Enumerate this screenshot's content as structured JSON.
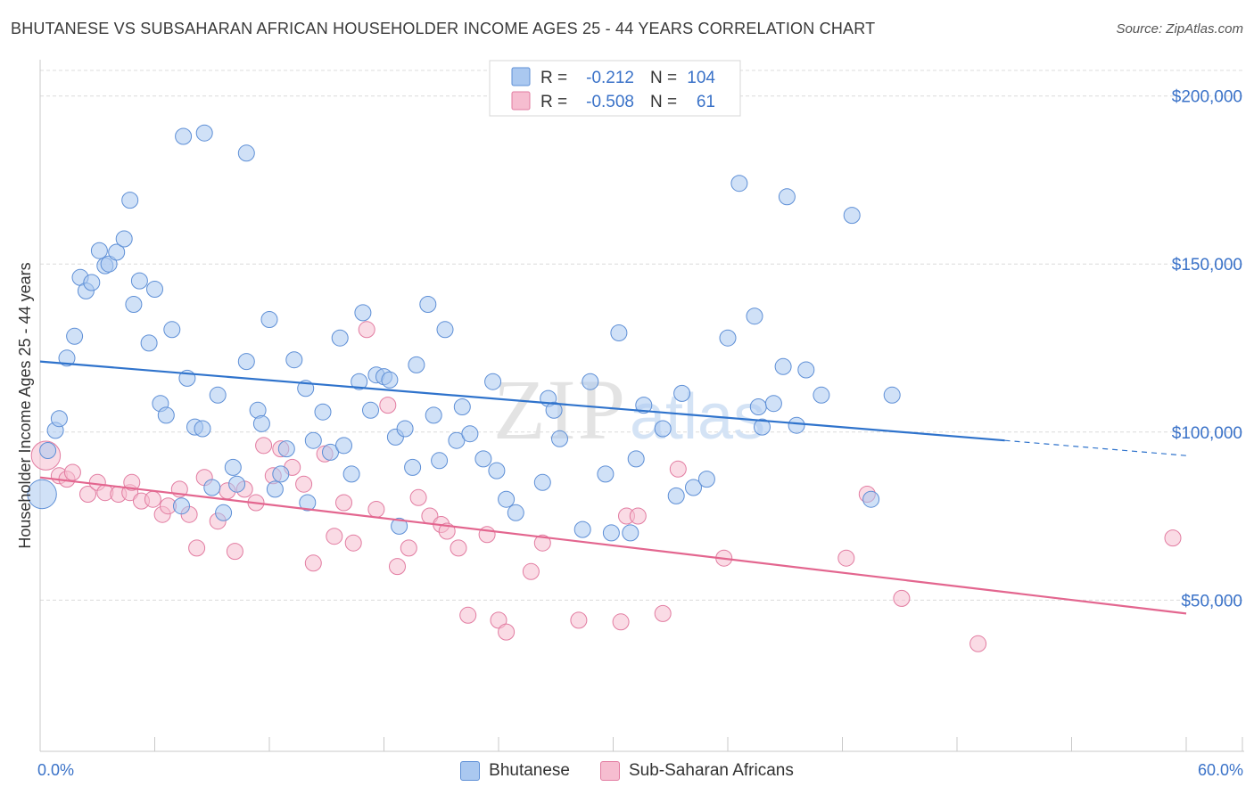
{
  "title": "BHUTANESE VS SUBSAHARAN AFRICAN HOUSEHOLDER INCOME AGES 25 - 44 YEARS CORRELATION CHART",
  "source": "Source: ZipAtlas.com",
  "watermark": "ZIPatlas",
  "colors": {
    "blue_fill": "#aac8f0",
    "blue_stroke": "#5e8fd6",
    "blue_line": "#2f73cc",
    "pink_fill": "#f6bdd0",
    "pink_stroke": "#e27ca1",
    "pink_line": "#e3668f",
    "axis_text": "#3a72c8",
    "grid": "#dcdcdc"
  },
  "legend": [
    {
      "key": "blue",
      "r_label": "R =",
      "r_value": "-0.212",
      "n_label": "N =",
      "n_value": "104"
    },
    {
      "key": "pink",
      "r_label": "R =",
      "r_value": "-0.508",
      "n_label": "N =",
      "n_value": "61"
    }
  ],
  "chart_data": {
    "type": "scatter",
    "title": "BHUTANESE VS SUBSAHARAN AFRICAN HOUSEHOLDER INCOME AGES 25 - 44 YEARS CORRELATION CHART",
    "xlabel": "",
    "ylabel": "Householder Income Ages 25 - 44 years",
    "xlim": [
      0,
      60
    ],
    "ylim": [
      5000,
      210000
    ],
    "x_tick_labels": [
      "0.0%",
      "60.0%"
    ],
    "y_ticks": [
      50000,
      100000,
      150000,
      200000
    ],
    "y_tick_labels": [
      "$50,000",
      "$100,000",
      "$150,000",
      "$200,000"
    ],
    "grid": true,
    "legend_position": "top-center",
    "series": [
      {
        "name": "Bhutanese",
        "color": "blue",
        "trend": {
          "x0": 0,
          "y0": 121000,
          "x1": 50.5,
          "y1": 97500,
          "dashed_to_x": 60,
          "dashed_to_y": 93000
        },
        "points": [
          [
            0.1,
            81500,
            1.8
          ],
          [
            0.4,
            94500,
            1.0
          ],
          [
            0.8,
            100500,
            1.0
          ],
          [
            1.0,
            104000,
            1.0
          ],
          [
            1.4,
            122000,
            1.0
          ],
          [
            1.8,
            128500,
            1.0
          ],
          [
            2.1,
            146000,
            1.0
          ],
          [
            2.4,
            142000,
            1.0
          ],
          [
            2.7,
            144500,
            1.0
          ],
          [
            3.1,
            154000,
            1.0
          ],
          [
            3.4,
            149500,
            1.0
          ],
          [
            3.6,
            150000,
            1.0
          ],
          [
            4.0,
            153500,
            1.0
          ],
          [
            4.4,
            157500,
            1.0
          ],
          [
            4.7,
            169000,
            1.0
          ],
          [
            4.9,
            138000,
            1.0
          ],
          [
            5.2,
            145000,
            1.0
          ],
          [
            5.7,
            126500,
            1.0
          ],
          [
            6.0,
            142500,
            1.0
          ],
          [
            6.3,
            108500,
            1.0
          ],
          [
            6.6,
            105000,
            1.0
          ],
          [
            6.9,
            130500,
            1.0
          ],
          [
            7.4,
            78000,
            1.0
          ],
          [
            7.7,
            116000,
            1.0
          ],
          [
            7.5,
            188000,
            1.0
          ],
          [
            8.1,
            101500,
            1.0
          ],
          [
            8.5,
            101000,
            1.0
          ],
          [
            8.6,
            189000,
            1.0
          ],
          [
            9.0,
            83500,
            1.0
          ],
          [
            9.3,
            111000,
            1.0
          ],
          [
            9.6,
            76000,
            1.0
          ],
          [
            10.1,
            89500,
            1.0
          ],
          [
            10.3,
            84500,
            1.0
          ],
          [
            10.8,
            121000,
            1.0
          ],
          [
            10.8,
            183000,
            1.0
          ],
          [
            11.4,
            106500,
            1.0
          ],
          [
            11.6,
            102500,
            1.0
          ],
          [
            12.0,
            133500,
            1.0
          ],
          [
            12.3,
            83000,
            1.0
          ],
          [
            12.6,
            87500,
            1.0
          ],
          [
            12.9,
            95000,
            1.0
          ],
          [
            13.3,
            121500,
            1.0
          ],
          [
            13.9,
            113000,
            1.0
          ],
          [
            14.0,
            79000,
            1.0
          ],
          [
            14.3,
            97500,
            1.0
          ],
          [
            14.8,
            106000,
            1.0
          ],
          [
            15.2,
            94000,
            1.0
          ],
          [
            15.7,
            128000,
            1.0
          ],
          [
            15.9,
            96000,
            1.0
          ],
          [
            16.3,
            87500,
            1.0
          ],
          [
            16.7,
            115000,
            1.0
          ],
          [
            16.9,
            135500,
            1.0
          ],
          [
            17.3,
            106500,
            1.0
          ],
          [
            17.6,
            117000,
            1.0
          ],
          [
            18.0,
            116500,
            1.0
          ],
          [
            18.3,
            115500,
            1.0
          ],
          [
            18.6,
            98500,
            1.0
          ],
          [
            18.8,
            72000,
            1.0
          ],
          [
            19.1,
            101000,
            1.0
          ],
          [
            19.5,
            89500,
            1.0
          ],
          [
            19.7,
            120000,
            1.0
          ],
          [
            20.3,
            138000,
            1.0
          ],
          [
            20.6,
            105000,
            1.0
          ],
          [
            20.9,
            91500,
            1.0
          ],
          [
            21.2,
            130500,
            1.0
          ],
          [
            21.8,
            97500,
            1.0
          ],
          [
            22.1,
            107500,
            1.0
          ],
          [
            22.5,
            99500,
            1.0
          ],
          [
            23.2,
            92000,
            1.0
          ],
          [
            23.7,
            115000,
            1.0
          ],
          [
            23.9,
            88500,
            1.0
          ],
          [
            24.4,
            80000,
            1.0
          ],
          [
            24.9,
            76000,
            1.0
          ],
          [
            26.3,
            85000,
            1.0
          ],
          [
            26.6,
            110000,
            1.0
          ],
          [
            26.9,
            106500,
            1.0
          ],
          [
            27.2,
            98000,
            1.0
          ],
          [
            28.4,
            71000,
            1.0
          ],
          [
            28.8,
            115000,
            1.0
          ],
          [
            29.6,
            87500,
            1.0
          ],
          [
            29.9,
            70000,
            1.0
          ],
          [
            30.3,
            129500,
            1.0
          ],
          [
            30.9,
            70000,
            1.0
          ],
          [
            31.2,
            92000,
            1.0
          ],
          [
            31.6,
            108000,
            1.0
          ],
          [
            32.6,
            101000,
            1.0
          ],
          [
            33.3,
            81000,
            1.0
          ],
          [
            33.6,
            111500,
            1.0
          ],
          [
            34.2,
            83500,
            1.0
          ],
          [
            34.9,
            86000,
            1.0
          ],
          [
            36.0,
            128000,
            1.0
          ],
          [
            36.6,
            174000,
            1.0
          ],
          [
            37.4,
            134500,
            1.0
          ],
          [
            37.6,
            107500,
            1.0
          ],
          [
            37.8,
            101500,
            1.0
          ],
          [
            38.4,
            108500,
            1.0
          ],
          [
            38.9,
            119500,
            1.0
          ],
          [
            39.1,
            170000,
            1.0
          ],
          [
            39.6,
            102000,
            1.0
          ],
          [
            40.1,
            118500,
            1.0
          ],
          [
            40.9,
            111000,
            1.0
          ],
          [
            42.5,
            164500,
            1.0
          ],
          [
            43.5,
            80000,
            1.0
          ],
          [
            44.6,
            111000,
            1.0
          ]
        ]
      },
      {
        "name": "Sub-Saharan Africans",
        "color": "pink",
        "trend": {
          "x0": 0,
          "y0": 86500,
          "x1": 60,
          "y1": 46000
        },
        "points": [
          [
            0.3,
            93000,
            1.8
          ],
          [
            1.0,
            87000,
            1.0
          ],
          [
            1.4,
            86000,
            1.0
          ],
          [
            1.7,
            88000,
            1.0
          ],
          [
            2.5,
            81500,
            1.0
          ],
          [
            3.0,
            85000,
            1.0
          ],
          [
            3.4,
            82000,
            1.0
          ],
          [
            4.1,
            81500,
            1.0
          ],
          [
            4.7,
            82000,
            1.0
          ],
          [
            4.8,
            85000,
            1.0
          ],
          [
            5.3,
            79500,
            1.0
          ],
          [
            5.9,
            80000,
            1.0
          ],
          [
            6.4,
            75500,
            1.0
          ],
          [
            6.7,
            78000,
            1.0
          ],
          [
            7.3,
            83000,
            1.0
          ],
          [
            7.8,
            75500,
            1.0
          ],
          [
            8.2,
            65500,
            1.0
          ],
          [
            8.6,
            86500,
            1.0
          ],
          [
            9.3,
            73500,
            1.0
          ],
          [
            9.8,
            82500,
            1.0
          ],
          [
            10.2,
            64500,
            1.0
          ],
          [
            10.7,
            83000,
            1.0
          ],
          [
            11.3,
            79000,
            1.0
          ],
          [
            11.7,
            96000,
            1.0
          ],
          [
            12.2,
            87000,
            1.0
          ],
          [
            12.6,
            95000,
            1.0
          ],
          [
            13.2,
            89500,
            1.0
          ],
          [
            13.8,
            84500,
            1.0
          ],
          [
            14.3,
            61000,
            1.0
          ],
          [
            14.9,
            93500,
            1.0
          ],
          [
            15.4,
            69000,
            1.0
          ],
          [
            15.9,
            79000,
            1.0
          ],
          [
            16.4,
            67000,
            1.0
          ],
          [
            17.1,
            130500,
            1.0
          ],
          [
            17.6,
            77000,
            1.0
          ],
          [
            18.2,
            108000,
            1.0
          ],
          [
            18.7,
            60000,
            1.0
          ],
          [
            19.3,
            65500,
            1.0
          ],
          [
            19.8,
            80500,
            1.0
          ],
          [
            20.4,
            75000,
            1.0
          ],
          [
            21.0,
            72500,
            1.0
          ],
          [
            21.3,
            70500,
            1.0
          ],
          [
            21.9,
            65500,
            1.0
          ],
          [
            22.4,
            45500,
            1.0
          ],
          [
            23.4,
            69500,
            1.0
          ],
          [
            24.0,
            44000,
            1.0
          ],
          [
            24.4,
            40500,
            1.0
          ],
          [
            25.7,
            58500,
            1.0
          ],
          [
            26.3,
            67000,
            1.0
          ],
          [
            28.2,
            44000,
            1.0
          ],
          [
            30.4,
            43500,
            1.0
          ],
          [
            30.7,
            75000,
            1.0
          ],
          [
            31.3,
            75000,
            1.0
          ],
          [
            32.6,
            46000,
            1.0
          ],
          [
            33.4,
            89000,
            1.0
          ],
          [
            35.8,
            62500,
            1.0
          ],
          [
            42.2,
            62500,
            1.0
          ],
          [
            43.3,
            81500,
            1.0
          ],
          [
            45.1,
            50500,
            1.0
          ],
          [
            49.1,
            37000,
            1.0
          ],
          [
            59.3,
            68500,
            1.0
          ]
        ]
      }
    ]
  },
  "bottom_legend": {
    "item1": "Bhutanese",
    "item2": "Sub-Saharan Africans"
  }
}
